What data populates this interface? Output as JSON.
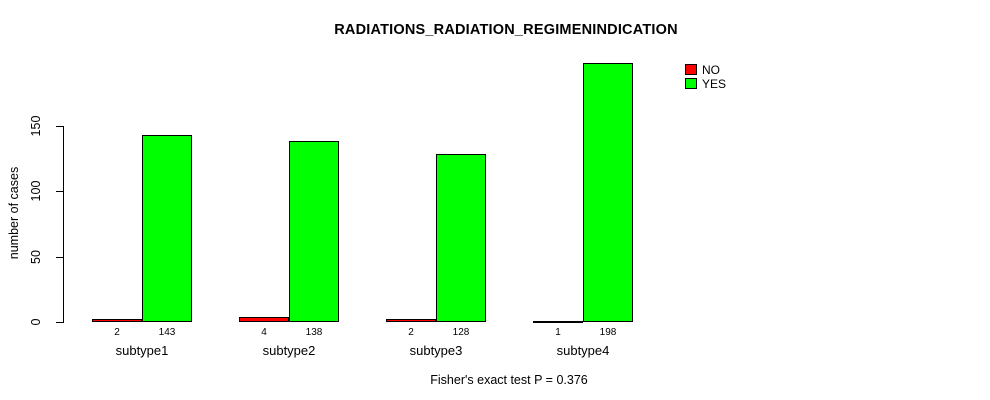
{
  "chart_data": {
    "type": "bar",
    "title": "RADIATIONS_RADIATION_REGIMENINDICATION",
    "categories": [
      "subtype1",
      "subtype2",
      "subtype3",
      "subtype4"
    ],
    "series": [
      {
        "name": "NO",
        "color": "#ff0000",
        "values": [
          2,
          4,
          2,
          1
        ]
      },
      {
        "name": "YES",
        "color": "#00ff00",
        "values": [
          143,
          138,
          128,
          198
        ]
      }
    ],
    "bar_value_labels": [
      [
        "2",
        "143"
      ],
      [
        "4",
        "138"
      ],
      [
        "2",
        "128"
      ],
      [
        "1",
        "198"
      ]
    ],
    "xlabel": "",
    "ylabel": "number of cases",
    "yticks": [
      0,
      50,
      100,
      150
    ],
    "ylim": [
      0,
      200
    ],
    "grid": false,
    "legend_position": "top-right",
    "bar_border_color": "#000000",
    "footnote": "Fisher's exact test P = 0.376"
  }
}
